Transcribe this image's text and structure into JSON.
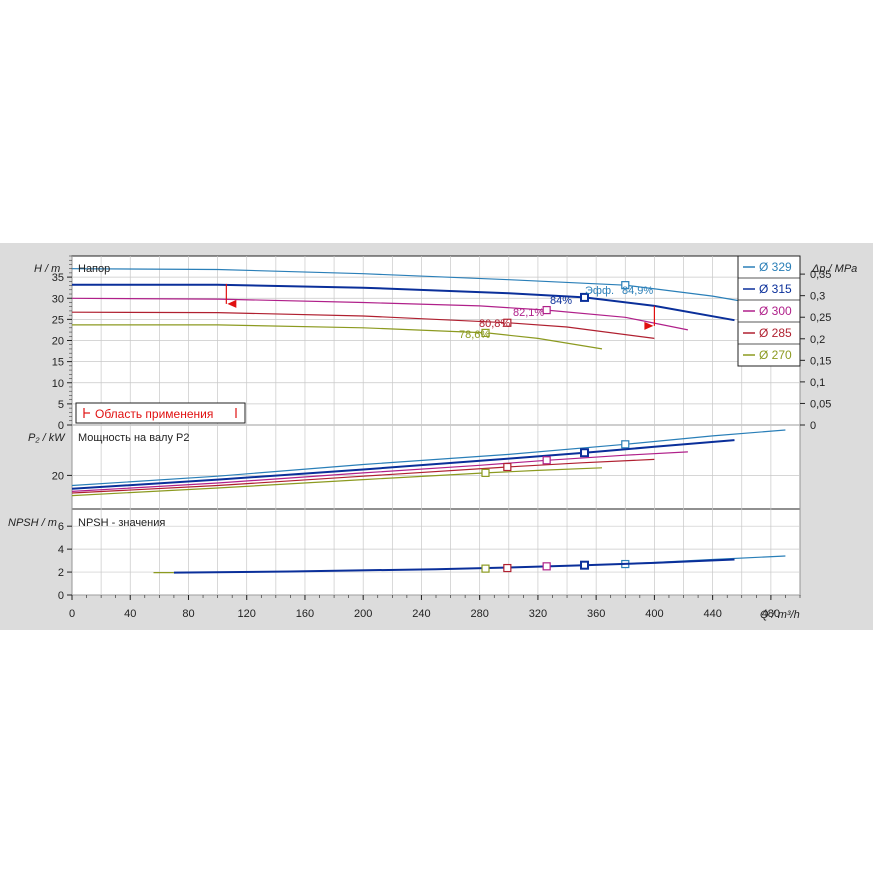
{
  "chart_data": {
    "type": "line",
    "series": [
      {
        "name": "Ø 329",
        "color": "#2a7fb8"
      },
      {
        "name": "Ø 315",
        "color": "#0a2f9a"
      },
      {
        "name": "Ø 300",
        "color": "#b0208a"
      },
      {
        "name": "Ø 285",
        "color": "#b02030"
      },
      {
        "name": "Ø 270",
        "color": "#8c9a20"
      }
    ],
    "x_axis": {
      "label": "Q / m³/h",
      "ticks": [
        "0",
        "40",
        "80",
        "120",
        "160",
        "200",
        "240",
        "280",
        "320",
        "360",
        "400",
        "440",
        "480"
      ],
      "range": [
        0,
        500
      ]
    },
    "head": {
      "title": "Напор",
      "ylabel": "H / m",
      "ticks": [
        "0",
        "5",
        "10",
        "15",
        "20",
        "25",
        "30",
        "35"
      ],
      "range": [
        0,
        40
      ],
      "right_label": "Δp / MPa",
      "right_ticks": [
        "0",
        "0,05",
        "0,1",
        "0,15",
        "0,2",
        "0,25",
        "0,3",
        "0,35"
      ],
      "curves": [
        {
          "diameter": "Ø 329",
          "points": [
            [
              0,
              37
            ],
            [
              100,
              36.8
            ],
            [
              200,
              35.8
            ],
            [
              300,
              34.4
            ],
            [
              380,
              33.1
            ],
            [
              440,
              30.5
            ],
            [
              490,
              27.5
            ]
          ],
          "bep": [
            380,
            33.1
          ]
        },
        {
          "diameter": "Ø 315",
          "points": [
            [
              0,
              33.2
            ],
            [
              100,
              33.2
            ],
            [
              200,
              32.5
            ],
            [
              300,
              31.2
            ],
            [
              352,
              30.2
            ],
            [
              400,
              28.2
            ],
            [
              455,
              24.8
            ]
          ],
          "bep": [
            352,
            30.2
          ]
        },
        {
          "diameter": "Ø 300",
          "points": [
            [
              0,
              30
            ],
            [
              100,
              29.8
            ],
            [
              200,
              29
            ],
            [
              280,
              28.2
            ],
            [
              326,
              27.2
            ],
            [
              380,
              25.5
            ],
            [
              423,
              22.5
            ]
          ],
          "bep": [
            326,
            27.2
          ]
        },
        {
          "diameter": "Ø 285",
          "points": [
            [
              0,
              26.7
            ],
            [
              100,
              26.6
            ],
            [
              200,
              25.8
            ],
            [
              300,
              24.2
            ],
            [
              340,
              23.2
            ],
            [
              400,
              20.5
            ]
          ],
          "bep": [
            299,
            24.2
          ]
        },
        {
          "diameter": "Ø 270",
          "points": [
            [
              0,
              23.7
            ],
            [
              100,
              23.7
            ],
            [
              200,
              23
            ],
            [
              285,
              21.8
            ],
            [
              320,
              20.5
            ],
            [
              364,
              18
            ]
          ],
          "bep": [
            284,
            21.8
          ]
        }
      ],
      "efficiency_labels": [
        "Эфф.",
        "84,9%",
        "84%",
        "82,1%",
        "80,8%",
        "78,6%"
      ],
      "operating_range": {
        "q_min": 106,
        "q_max": 400,
        "h_min": 33.4,
        "h_max": 28.2
      },
      "legend_box": "Область применения"
    },
    "power": {
      "title": "Мощность на валу P2",
      "ylabel": "P₂ / kW",
      "ticks": [
        "20"
      ],
      "range": [
        0,
        50
      ],
      "curves": [
        {
          "diameter": "Ø 329",
          "points": [
            [
              0,
              14
            ],
            [
              100,
              19.5
            ],
            [
              200,
              26.5
            ],
            [
              300,
              32.5
            ],
            [
              380,
              38.5
            ],
            [
              440,
              43.5
            ],
            [
              490,
              47
            ]
          ],
          "bep": [
            380,
            38.5
          ]
        },
        {
          "diameter": "Ø 315",
          "points": [
            [
              0,
              12
            ],
            [
              100,
              17.5
            ],
            [
              200,
              23.5
            ],
            [
              300,
              30
            ],
            [
              352,
              33.5
            ],
            [
              400,
              37
            ],
            [
              455,
              41
            ]
          ],
          "bep": [
            352,
            33.5
          ]
        },
        {
          "diameter": "Ø 300",
          "points": [
            [
              0,
              10.5
            ],
            [
              100,
              15.5
            ],
            [
              200,
              21.5
            ],
            [
              280,
              26
            ],
            [
              326,
              29
            ],
            [
              380,
              32
            ],
            [
              423,
              34
            ]
          ],
          "bep": [
            326,
            29
          ]
        },
        {
          "diameter": "Ø 285",
          "points": [
            [
              0,
              9.5
            ],
            [
              100,
              14
            ],
            [
              200,
              19.5
            ],
            [
              299,
              25
            ],
            [
              350,
              27.5
            ],
            [
              400,
              29.5
            ]
          ],
          "bep": [
            299,
            25
          ]
        },
        {
          "diameter": "Ø 270",
          "points": [
            [
              0,
              8
            ],
            [
              100,
              12.5
            ],
            [
              200,
              17.5
            ],
            [
              284,
              21.5
            ],
            [
              320,
              23
            ],
            [
              364,
              24.5
            ]
          ],
          "bep": [
            284,
            21.5
          ]
        }
      ]
    },
    "npsh": {
      "title": "NPSH - значения",
      "ylabel": "NPSH / m",
      "ticks": [
        "0",
        "2",
        "4",
        "6"
      ],
      "range": [
        0,
        7.5
      ],
      "curves": [
        {
          "diameter": "Ø 329",
          "points": [
            [
              380,
              2.7
            ],
            [
              440,
              3.1
            ],
            [
              490,
              3.4
            ]
          ],
          "bep": [
            380,
            2.7
          ]
        },
        {
          "diameter": "Ø 315",
          "points": [
            [
              70,
              1.95
            ],
            [
              150,
              2.05
            ],
            [
              250,
              2.25
            ],
            [
              300,
              2.4
            ],
            [
              352,
              2.6
            ],
            [
              400,
              2.8
            ],
            [
              455,
              3.1
            ]
          ],
          "bep": [
            352,
            2.6
          ]
        },
        {
          "diameter": "Ø 300",
          "points": [
            [
              326,
              2.5
            ]
          ],
          "bep": [
            326,
            2.5
          ]
        },
        {
          "diameter": "Ø 285",
          "points": [
            [
              299,
              2.35
            ]
          ],
          "bep": [
            299,
            2.35
          ]
        },
        {
          "diameter": "Ø 270",
          "points": [
            [
              56,
              1.95
            ],
            [
              70,
              1.95
            ]
          ],
          "bep": [
            284,
            2.3
          ]
        }
      ]
    }
  }
}
